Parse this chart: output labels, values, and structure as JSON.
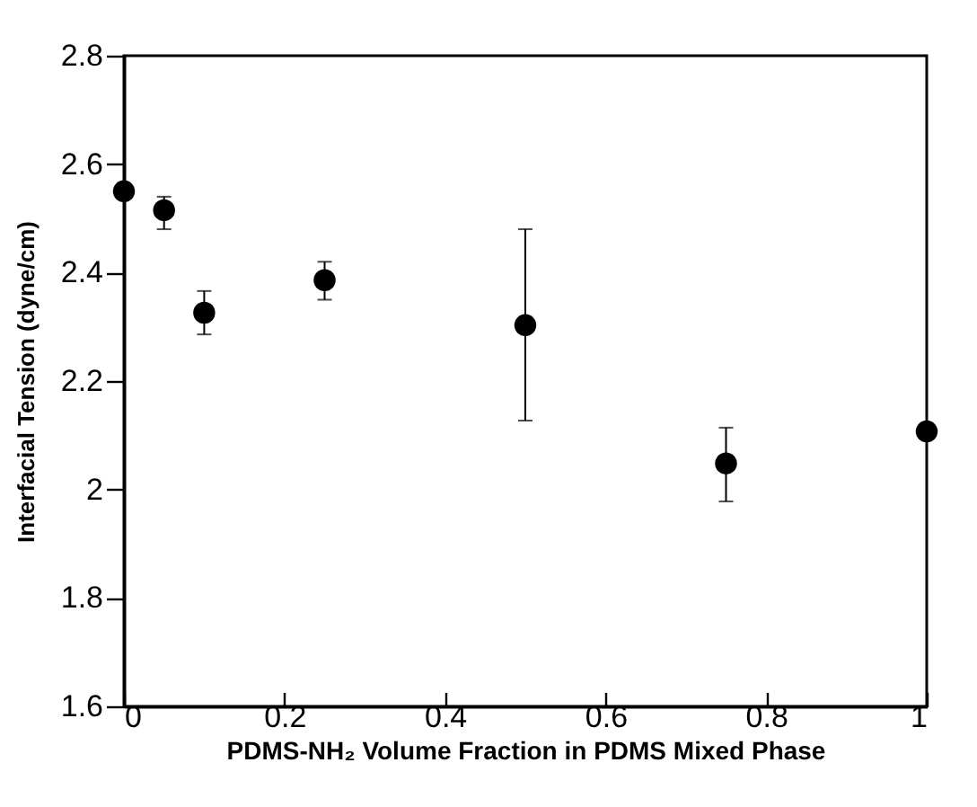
{
  "chart_data": {
    "type": "scatter",
    "xlabel": "PDMS-NH₂ Volume Fraction in PDMS Mixed Phase",
    "ylabel": "Interfacial Tension  (dyne/cm)",
    "x": [
      0,
      0.05,
      0.1,
      0.25,
      0.5,
      0.75,
      1
    ],
    "series": [
      {
        "color": "#000000",
        "values": [
          2.55,
          2.515,
          2.326,
          2.386,
          2.303,
          2.048,
          2.107
        ],
        "errors": [
          null,
          [
            2.48,
            2.54
          ],
          [
            2.286,
            2.366
          ],
          [
            2.35,
            2.42
          ],
          [
            2.127,
            2.48
          ],
          [
            1.978,
            2.114
          ],
          null
        ]
      }
    ],
    "xlim": [
      0,
      1
    ],
    "xticks": [
      0,
      0.2,
      0.4,
      0.6,
      0.8,
      1
    ],
    "ylim": [
      1.6,
      2.8
    ],
    "yticks": [
      1.6,
      1.8,
      2,
      2.2,
      2.4,
      2.6,
      2.8
    ],
    "marker": "circle",
    "grid": false
  }
}
